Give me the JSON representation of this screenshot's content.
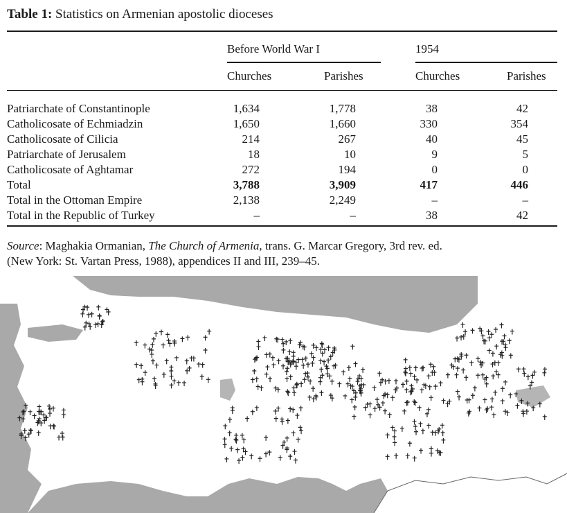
{
  "table": {
    "label": "Table 1:",
    "title": "Statistics on Armenian apostolic dioceses",
    "group_headers": [
      "Before World War I",
      "1954"
    ],
    "column_headers": [
      "Churches",
      "Parishes",
      "Churches",
      "Parishes"
    ],
    "rows": [
      {
        "name": "Patriarchate of Constantinople",
        "values": [
          "1,634",
          "1,778",
          "38",
          "42"
        ]
      },
      {
        "name": "Catholicosate of Echmiadzin",
        "values": [
          "1,650",
          "1,660",
          "330",
          "354"
        ]
      },
      {
        "name": "Catholicosate of Cilicia",
        "values": [
          "214",
          "267",
          "40",
          "45"
        ]
      },
      {
        "name": "Patriarchate of Jerusalem",
        "values": [
          "18",
          "10",
          "9",
          "5"
        ]
      },
      {
        "name": "Catholicosate of Aghtamar",
        "values": [
          "272",
          "194",
          "0",
          "0"
        ]
      },
      {
        "name": "Total",
        "values": [
          "3,788",
          "3,909",
          "417",
          "446"
        ],
        "bold": true
      },
      {
        "name": "Total in the Ottoman Empire",
        "values": [
          "2,138",
          "2,249",
          "–",
          "–"
        ]
      },
      {
        "name": "Total in the Republic of Turkey",
        "values": [
          "–",
          "–",
          "38",
          "42"
        ]
      }
    ]
  },
  "source": {
    "label": "Source",
    "author": ": Maghakia Ormanian, ",
    "work": "The Church of Armenia,",
    "rest1": " trans. G. Marcar Gregory, 3rd rev. ed.",
    "rest2": "(New York: St. Vartan Press, 1988), appendices II and III, 239–45."
  },
  "map": {
    "sea_color": "#a9a9a9",
    "land_color": "#ffffff",
    "marker_icon": "cross-icon"
  }
}
